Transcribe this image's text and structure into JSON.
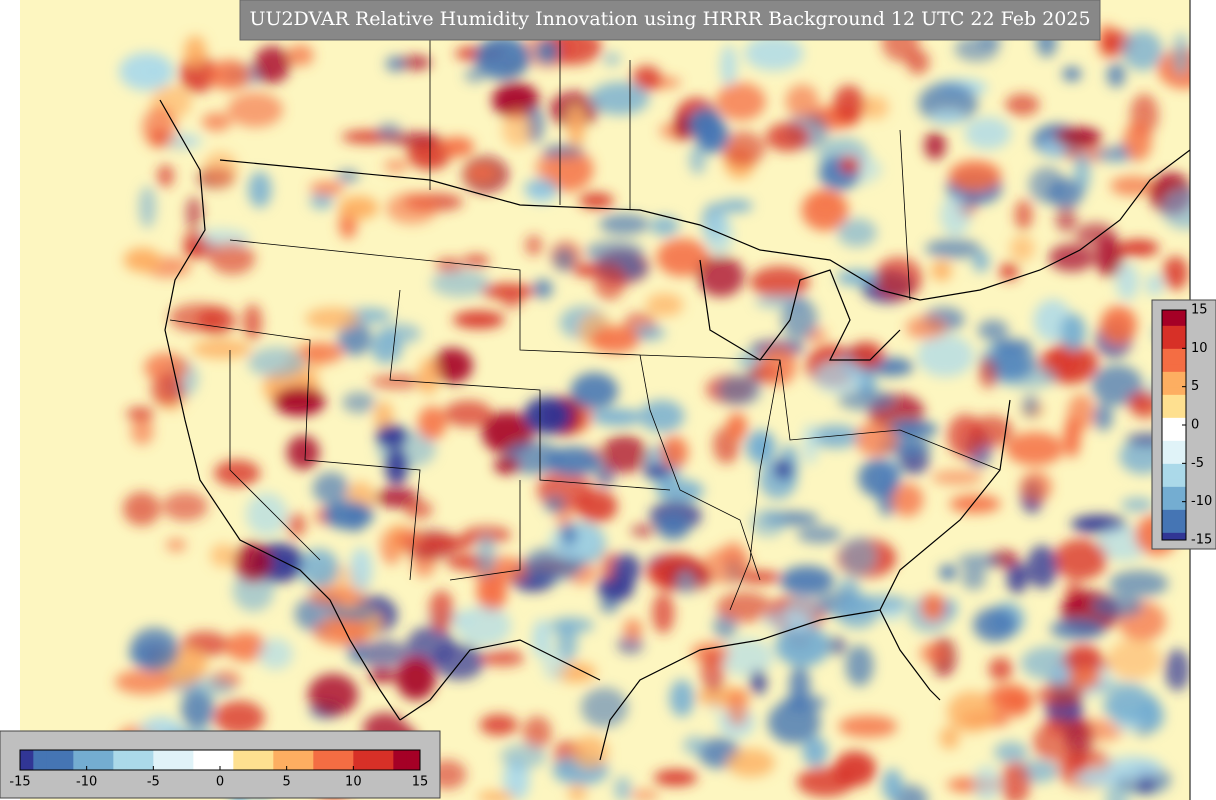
{
  "title": "UU2DVAR Relative Humidity Innovation using HRRR Background 12 UTC 22 Feb 2025",
  "colormap": [
    "#313695",
    "#4575b4",
    "#74add1",
    "#abd9e9",
    "#e0f3f8",
    "#ffffff",
    "#fee090",
    "#fdae61",
    "#f46d43",
    "#d73027",
    "#a50026"
  ],
  "colorbar_horizontal": {
    "lim": [
      -15,
      15
    ],
    "ticks": [
      -15,
      -10,
      -5,
      0,
      5,
      10,
      15
    ]
  },
  "colorbar_vertical": {
    "lim": [
      -15,
      15
    ],
    "ticks": [
      -15,
      -10,
      -5,
      0,
      5,
      10,
      15
    ]
  }
}
